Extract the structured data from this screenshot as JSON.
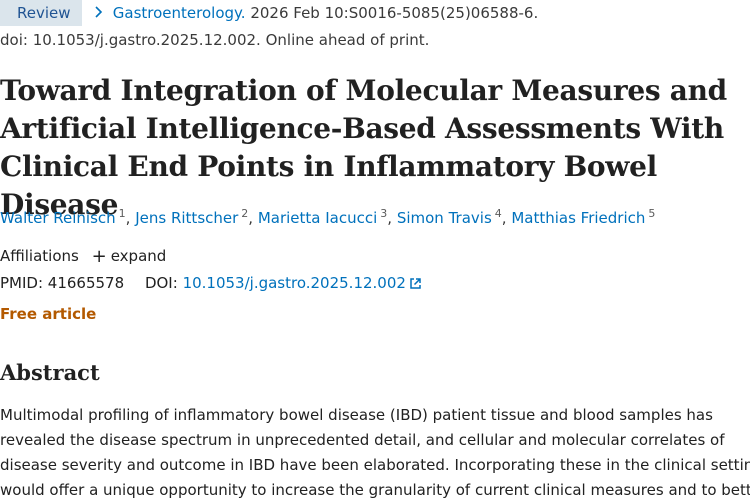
{
  "badge": "Review",
  "journal": {
    "name": "Gastroenterology.",
    "citation": " 2026 Feb 10:S0016-5085(25)06588-6."
  },
  "doi_line": "doi: 10.1053/j.gastro.2025.12.002. Online ahead of print.",
  "title": "Toward Integration of Molecular Measures and Artificial Intelligence-Based Assessments With Clinical End Points in Inflammatory Bowel Disease",
  "authors": [
    {
      "name": "Walter Reinisch",
      "sup": "1"
    },
    {
      "name": "Jens Rittscher",
      "sup": "2"
    },
    {
      "name": "Marietta Iacucci",
      "sup": "3"
    },
    {
      "name": "Simon Travis",
      "sup": "4"
    },
    {
      "name": "Matthias Friedrich",
      "sup": "5"
    }
  ],
  "author_separator": ", ",
  "affiliations": {
    "label": "Affiliations",
    "expand": "expand"
  },
  "ids": {
    "pmid_label": "PMID:",
    "pmid": "41665578",
    "doi_label": "DOI:",
    "doi": "10.1053/j.gastro.2025.12.002"
  },
  "free_article": "Free article",
  "abstract": {
    "heading": "Abstract",
    "lines": [
      "Multimodal profiling of inflammatory bowel disease (IBD) patient tissue and blood samples has",
      "revealed the disease spectrum in unprecedented detail, and cellular and molecular correlates of",
      "disease severity and outcome in IBD have been elaborated. Incorporating these in the clinical setting",
      "would offer a unique opportunity to increase the granularity of current clinical measures and to better"
    ]
  },
  "colors": {
    "link": "#0071bc",
    "badge_bg": "#dbe5ec",
    "free": "#b35900"
  },
  "icons": {
    "breadcrumb": "chevron-right-icon",
    "expand": "plus-icon",
    "doi_link": "external-link-icon"
  }
}
